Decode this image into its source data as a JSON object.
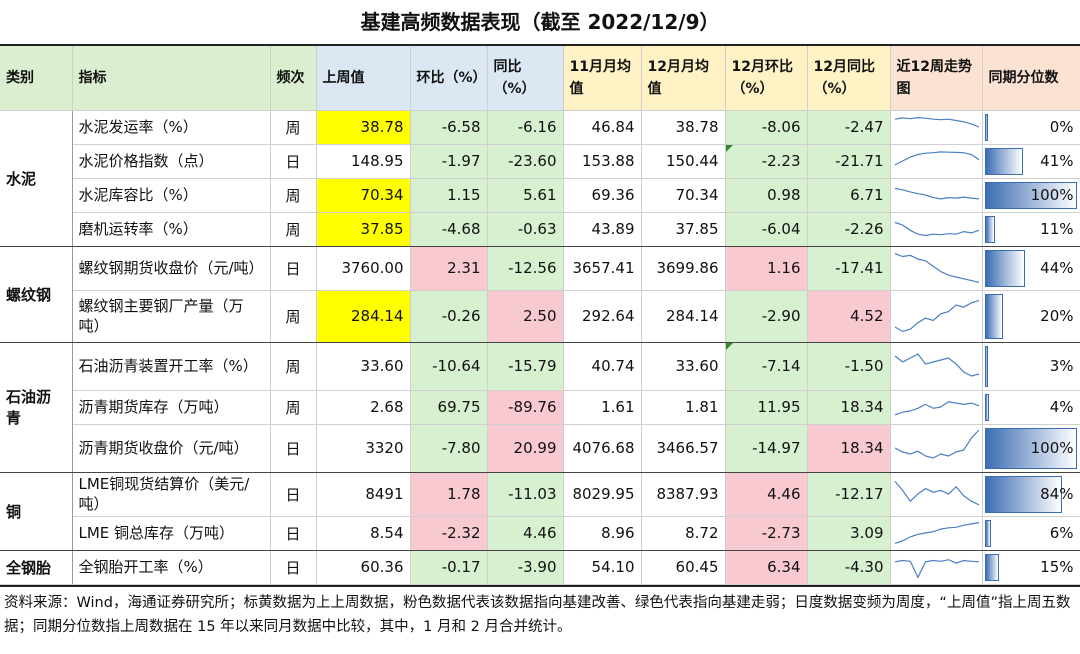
{
  "title": "基建高频数据表现（截至 2022/12/9）",
  "headers": {
    "category": "类别",
    "indicator": "指标",
    "frequency": "频次",
    "last_week": "上周值",
    "wow": "环比（%）",
    "yoy": "同比（%）",
    "nov_avg": "11月月均值",
    "dec_avg": "12月月均值",
    "dec_mom": "12月环比（%）",
    "dec_yoy": "12月同比（%）",
    "trend": "近12周走势图",
    "percentile": "同期分位数"
  },
  "categories": {
    "cement": "水泥",
    "rebar": "螺纹钢",
    "asphalt": "石油沥青",
    "copper": "铜",
    "tire": "全钢胎"
  },
  "rows": [
    {
      "indicator": "水泥发运率（%）",
      "freq": "周",
      "last_week": "38.78",
      "wow": "-6.58",
      "yoy": "-6.16",
      "nov": "46.84",
      "dec": "38.78",
      "dec_mom": "-8.06",
      "dec_yoy": "-2.47",
      "percentile": "0%",
      "pct_value": 0,
      "trend": [
        0.8,
        0.85,
        0.82,
        0.86,
        0.84,
        0.8,
        0.78,
        0.8,
        0.75,
        0.7,
        0.62,
        0.5
      ]
    },
    {
      "indicator": "水泥价格指数（点）",
      "freq": "日",
      "last_week": "148.95",
      "wow": "-1.97",
      "yoy": "-23.60",
      "nov": "153.88",
      "dec": "150.44",
      "dec_mom": "-2.23",
      "dec_yoy": "-21.71",
      "percentile": "41%",
      "pct_value": 41,
      "trend": [
        0.35,
        0.5,
        0.65,
        0.75,
        0.8,
        0.82,
        0.85,
        0.84,
        0.83,
        0.82,
        0.75,
        0.55
      ]
    },
    {
      "indicator": "水泥库容比（%）",
      "freq": "周",
      "last_week": "70.34",
      "wow": "1.15",
      "yoy": "5.61",
      "nov": "69.36",
      "dec": "70.34",
      "dec_mom": "0.98",
      "dec_yoy": "6.71",
      "percentile": "100%",
      "pct_value": 100,
      "trend": [
        0.75,
        0.7,
        0.62,
        0.55,
        0.5,
        0.4,
        0.35,
        0.4,
        0.38,
        0.42,
        0.38,
        0.35
      ]
    },
    {
      "indicator": "磨机运转率（%）",
      "freq": "周",
      "last_week": "37.85",
      "wow": "-4.68",
      "yoy": "-0.63",
      "nov": "43.89",
      "dec": "37.85",
      "dec_mom": "-6.04",
      "dec_yoy": "-2.26",
      "percentile": "11%",
      "pct_value": 11,
      "trend": [
        0.75,
        0.65,
        0.45,
        0.3,
        0.25,
        0.3,
        0.28,
        0.32,
        0.3,
        0.4,
        0.35,
        0.45
      ]
    },
    {
      "indicator": "螺纹钢期货收盘价（元/吨）",
      "freq": "日",
      "last_week": "3760.00",
      "wow": "2.31",
      "yoy": "-12.56",
      "nov": "3657.41",
      "dec": "3699.86",
      "dec_mom": "1.16",
      "dec_yoy": "-17.41",
      "percentile": "44%",
      "pct_value": 44,
      "trend": [
        0.9,
        0.82,
        0.85,
        0.75,
        0.7,
        0.55,
        0.4,
        0.3,
        0.25,
        0.2,
        0.15,
        0.1
      ]
    },
    {
      "indicator": "螺纹钢主要钢厂产量（万吨）",
      "freq": "周",
      "last_week": "284.14",
      "wow": "-0.26",
      "yoy": "2.50",
      "nov": "292.64",
      "dec": "284.14",
      "dec_mom": "-2.90",
      "dec_yoy": "4.52",
      "percentile": "20%",
      "pct_value": 20,
      "trend": [
        0.25,
        0.15,
        0.2,
        0.35,
        0.45,
        0.4,
        0.55,
        0.6,
        0.75,
        0.7,
        0.8,
        0.85
      ]
    },
    {
      "indicator": "石油沥青装置开工率（%）",
      "freq": "周",
      "last_week": "33.60",
      "wow": "-10.64",
      "yoy": "-15.79",
      "nov": "40.74",
      "dec": "33.60",
      "dec_mom": "-7.14",
      "dec_yoy": "-1.50",
      "percentile": "3%",
      "pct_value": 3,
      "trend": [
        0.75,
        0.6,
        0.7,
        0.8,
        0.55,
        0.6,
        0.65,
        0.7,
        0.55,
        0.35,
        0.25,
        0.3
      ]
    },
    {
      "indicator": "沥青期货库存（万吨）",
      "freq": "周",
      "last_week": "2.68",
      "wow": "69.75",
      "yoy": "-89.76",
      "nov": "1.61",
      "dec": "1.81",
      "dec_mom": "11.95",
      "dec_yoy": "18.34",
      "percentile": "4%",
      "pct_value": 4,
      "trend": [
        0.2,
        0.3,
        0.35,
        0.45,
        0.6,
        0.45,
        0.5,
        0.7,
        0.65,
        0.6,
        0.65,
        0.55
      ]
    },
    {
      "indicator": "沥青期货收盘价（元/吨）",
      "freq": "日",
      "last_week": "3320",
      "wow": "-7.80",
      "yoy": "20.99",
      "nov": "4076.68",
      "dec": "3466.57",
      "dec_mom": "-14.97",
      "dec_yoy": "18.34",
      "percentile": "100%",
      "pct_value": 100,
      "trend": [
        0.5,
        0.4,
        0.35,
        0.42,
        0.3,
        0.25,
        0.35,
        0.3,
        0.4,
        0.45,
        0.75,
        0.95
      ]
    },
    {
      "indicator": "LME铜现货结算价（美元/吨）",
      "freq": "日",
      "last_week": "8491",
      "wow": "1.78",
      "yoy": "-11.03",
      "nov": "8029.95",
      "dec": "8387.93",
      "dec_mom": "4.46",
      "dec_yoy": "-12.17",
      "percentile": "84%",
      "pct_value": 84,
      "trend": [
        0.85,
        0.6,
        0.3,
        0.5,
        0.65,
        0.55,
        0.6,
        0.5,
        0.7,
        0.45,
        0.3,
        0.2
      ]
    },
    {
      "indicator": "LME 铜总库存（万吨）",
      "freq": "日",
      "last_week": "8.54",
      "wow": "-2.32",
      "yoy": "4.46",
      "nov": "8.96",
      "dec": "8.72",
      "dec_mom": "-2.73",
      "dec_yoy": "3.09",
      "percentile": "6%",
      "pct_value": 6,
      "trend": [
        0.1,
        0.2,
        0.35,
        0.45,
        0.5,
        0.55,
        0.65,
        0.7,
        0.72,
        0.8,
        0.85,
        0.9
      ]
    },
    {
      "indicator": "全钢胎开工率（%）",
      "freq": "日",
      "last_week": "60.36",
      "wow": "-0.17",
      "yoy": "-3.90",
      "nov": "54.10",
      "dec": "60.45",
      "dec_mom": "6.34",
      "dec_yoy": "-4.30",
      "percentile": "15%",
      "pct_value": 15,
      "trend": [
        0.7,
        0.75,
        0.72,
        0.1,
        0.7,
        0.75,
        0.72,
        0.78,
        0.65,
        0.75,
        0.72,
        0.7
      ]
    }
  ],
  "note": "资料来源：Wind，海通证券研究所；标黄数据为上上周数据，粉色数据代表该数据指向基建改善、绿色代表指向基建走弱；日度数据变频为周度，“上周值”指上周五数据；同期分位数指上周数据在 15 年以来同月数据中比较，其中，1 月和 2 月合并统计。"
}
